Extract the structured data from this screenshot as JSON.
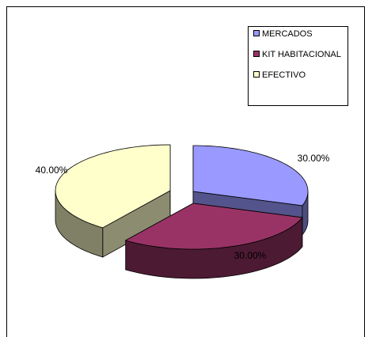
{
  "chart_data": {
    "type": "pie",
    "style": "3d-exploded",
    "title": "",
    "legend_position": "top-right",
    "categories": [
      "MERCADOS",
      "KIT HABITACIONAL",
      "EFECTIVO"
    ],
    "values": [
      30,
      30,
      40
    ],
    "data_labels": [
      "30.00%",
      "30.00%",
      "40.00%"
    ],
    "colors": {
      "MERCADOS": "#9999ff",
      "KIT HABITACIONAL": "#993366",
      "EFECTIVO": "#ffffcc"
    }
  }
}
